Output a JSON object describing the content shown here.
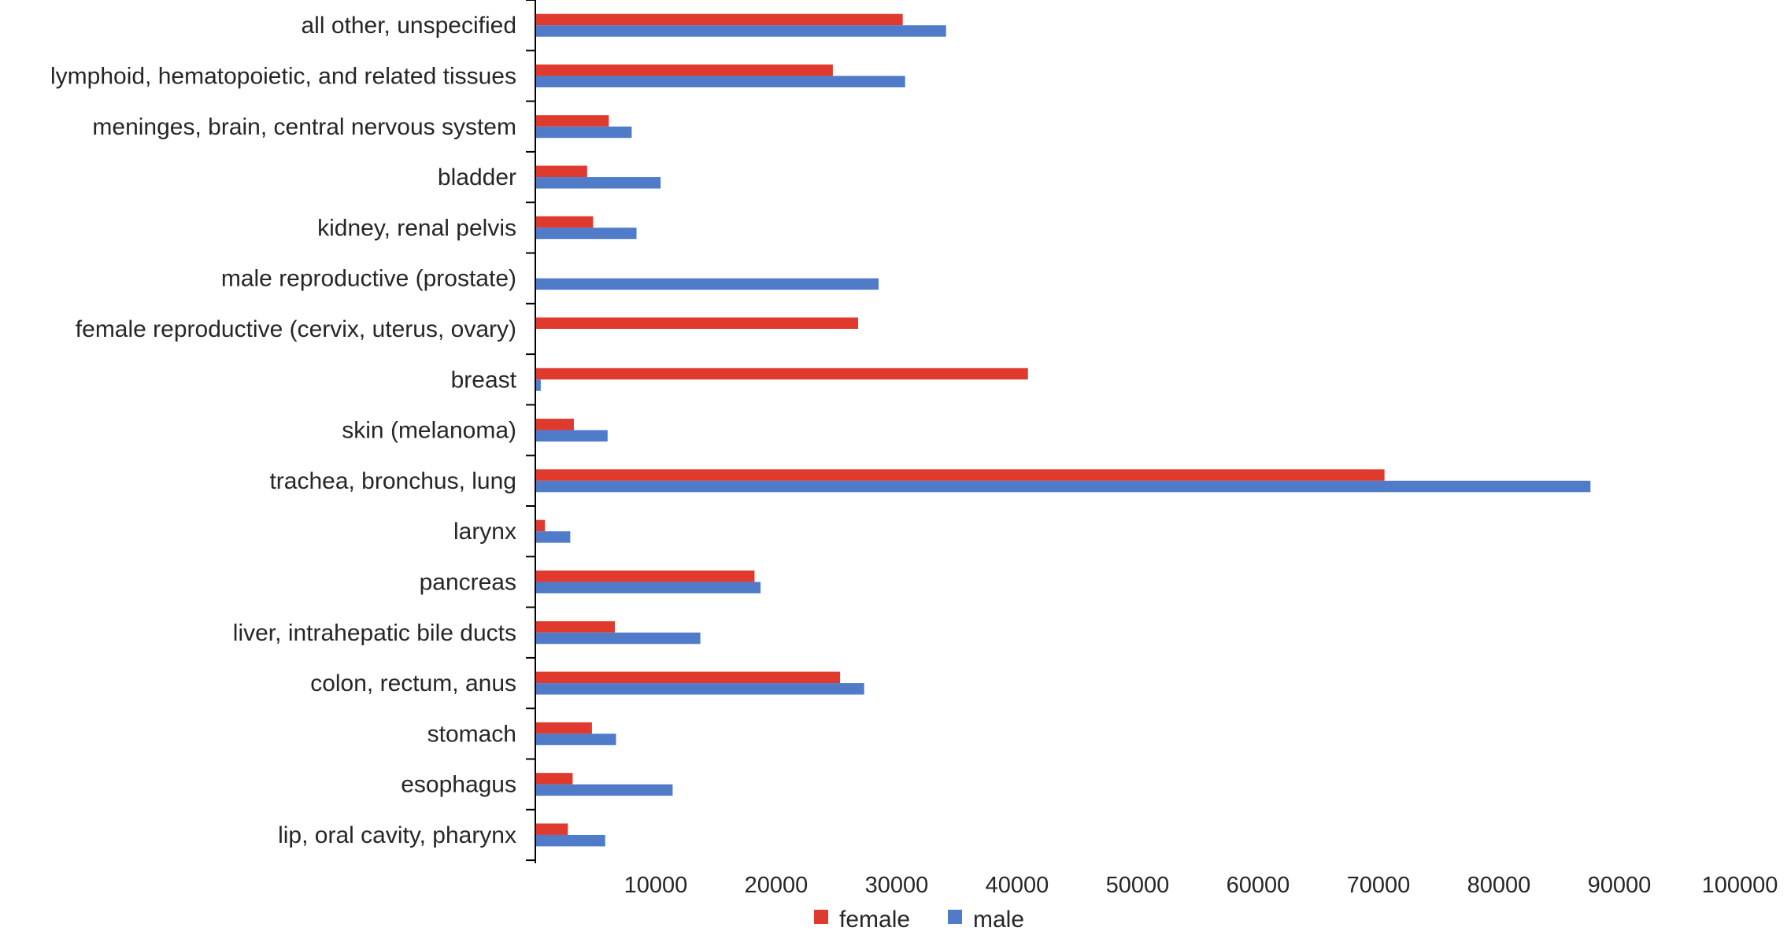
{
  "chart_data": {
    "type": "bar",
    "orientation": "horizontal",
    "categories": [
      "all other, unspecified",
      "lymphoid, hematopoietic, and related tissues",
      "meninges, brain, central nervous system",
      "bladder",
      "kidney, renal pelvis",
      "male reproductive (prostate)",
      "female reproductive (cervix, uterus, ovary)",
      "breast",
      "skin (melanoma)",
      "trachea, bronchus, lung",
      "larynx",
      "pancreas",
      "liver, intrahepatic bile ducts",
      "colon, rectum, anus",
      "stomach",
      "esophagus",
      "lip, oral cavity, pharynx"
    ],
    "series": [
      {
        "name": "female",
        "color": "#e03a2e",
        "values": [
          30500,
          24700,
          6100,
          4300,
          4800,
          0,
          26800,
          40900,
          3200,
          70500,
          800,
          18200,
          6600,
          25300,
          4700,
          3100,
          2700
        ]
      },
      {
        "name": "male",
        "color": "#4f7bc9",
        "values": [
          34100,
          30700,
          8000,
          10400,
          8400,
          28500,
          0,
          450,
          6000,
          87600,
          2900,
          18700,
          13700,
          27300,
          6700,
          11400,
          5800
        ]
      }
    ],
    "xlim": [
      0,
      100000
    ],
    "x_ticks": [
      "10000",
      "20000",
      "30000",
      "40000",
      "50000",
      "60000",
      "70000",
      "80000",
      "90000",
      "100000"
    ],
    "x_tick_values": [
      10000,
      20000,
      30000,
      40000,
      50000,
      60000,
      70000,
      80000,
      90000,
      100000
    ],
    "title": "",
    "xlabel": "",
    "ylabel": "",
    "grid": false,
    "legend_position": "bottom-center"
  }
}
